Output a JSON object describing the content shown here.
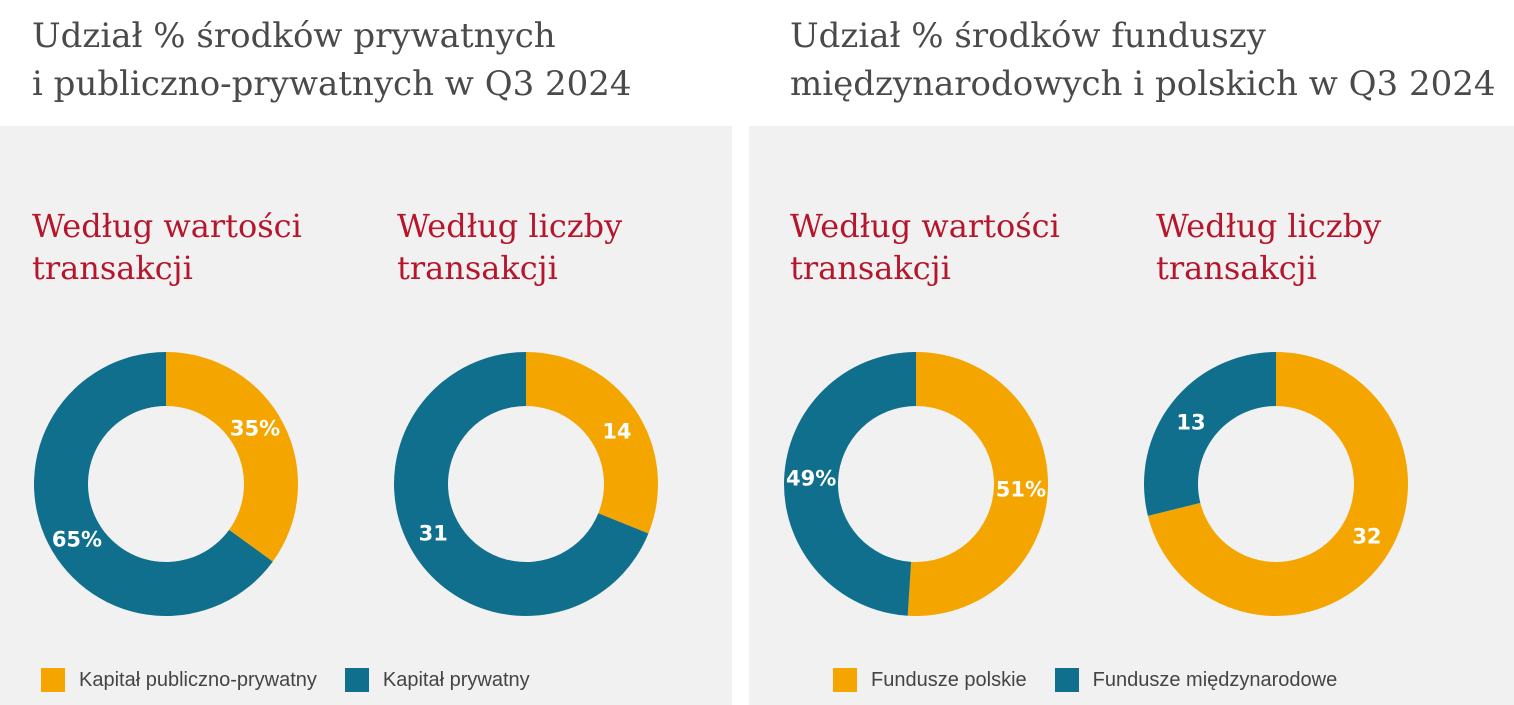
{
  "colors": {
    "orange": "#f4a500",
    "teal": "#0f6f8c",
    "title_red": "#b5162c",
    "panel_bg": "#f1f1f1"
  },
  "panels": [
    {
      "title_lines": [
        "Udział % środków prywatnych",
        "i publiczno-prywatnych w Q3 2024"
      ],
      "legend": [
        {
          "label": "Kapitał publiczno-prywatny",
          "color": "#f4a500"
        },
        {
          "label": "Kapitał prywatny",
          "color": "#0f6f8c"
        }
      ]
    },
    {
      "title_lines": [
        "Udział % środków funduszy",
        "międzynarodowych i polskich w Q3 2024"
      ],
      "legend": [
        {
          "label": "Fundusze polskie",
          "color": "#f4a500"
        },
        {
          "label": "Fundusze międzynarodowe",
          "color": "#0f6f8c"
        }
      ]
    }
  ],
  "chart_data": [
    {
      "type": "pie",
      "title": "Według wartości transakcji",
      "title_lines": [
        "Według wartości",
        "transakcji"
      ],
      "donut": true,
      "slices": [
        {
          "label": "Kapitał publiczno-prywatny",
          "value": 35,
          "display": "35%",
          "color": "#f4a500"
        },
        {
          "label": "Kapitał prywatny",
          "value": 65,
          "display": "65%",
          "color": "#0f6f8c"
        }
      ]
    },
    {
      "type": "pie",
      "title": "Według liczby transakcji",
      "title_lines": [
        "Według liczby",
        "transakcji"
      ],
      "donut": true,
      "slices": [
        {
          "label": "Kapitał publiczno-prywatny",
          "value": 14,
          "display": "14",
          "color": "#f4a500"
        },
        {
          "label": "Kapitał prywatny",
          "value": 31,
          "display": "31",
          "color": "#0f6f8c"
        }
      ]
    },
    {
      "type": "pie",
      "title": "Według wartości transakcji",
      "title_lines": [
        "Według wartości",
        "transakcji"
      ],
      "donut": true,
      "slices": [
        {
          "label": "Fundusze polskie",
          "value": 51,
          "display": "51%",
          "color": "#f4a500"
        },
        {
          "label": "Fundusze międzynarodowe",
          "value": 49,
          "display": "49%",
          "color": "#0f6f8c"
        }
      ]
    },
    {
      "type": "pie",
      "title": "Według liczby transakcji",
      "title_lines": [
        "Według liczby",
        "transakcji"
      ],
      "donut": true,
      "slices": [
        {
          "label": "Fundusze polskie",
          "value": 32,
          "display": "32",
          "color": "#f4a500"
        },
        {
          "label": "Fundusze międzynarodowe",
          "value": 13,
          "display": "13",
          "color": "#0f6f8c"
        }
      ]
    }
  ]
}
